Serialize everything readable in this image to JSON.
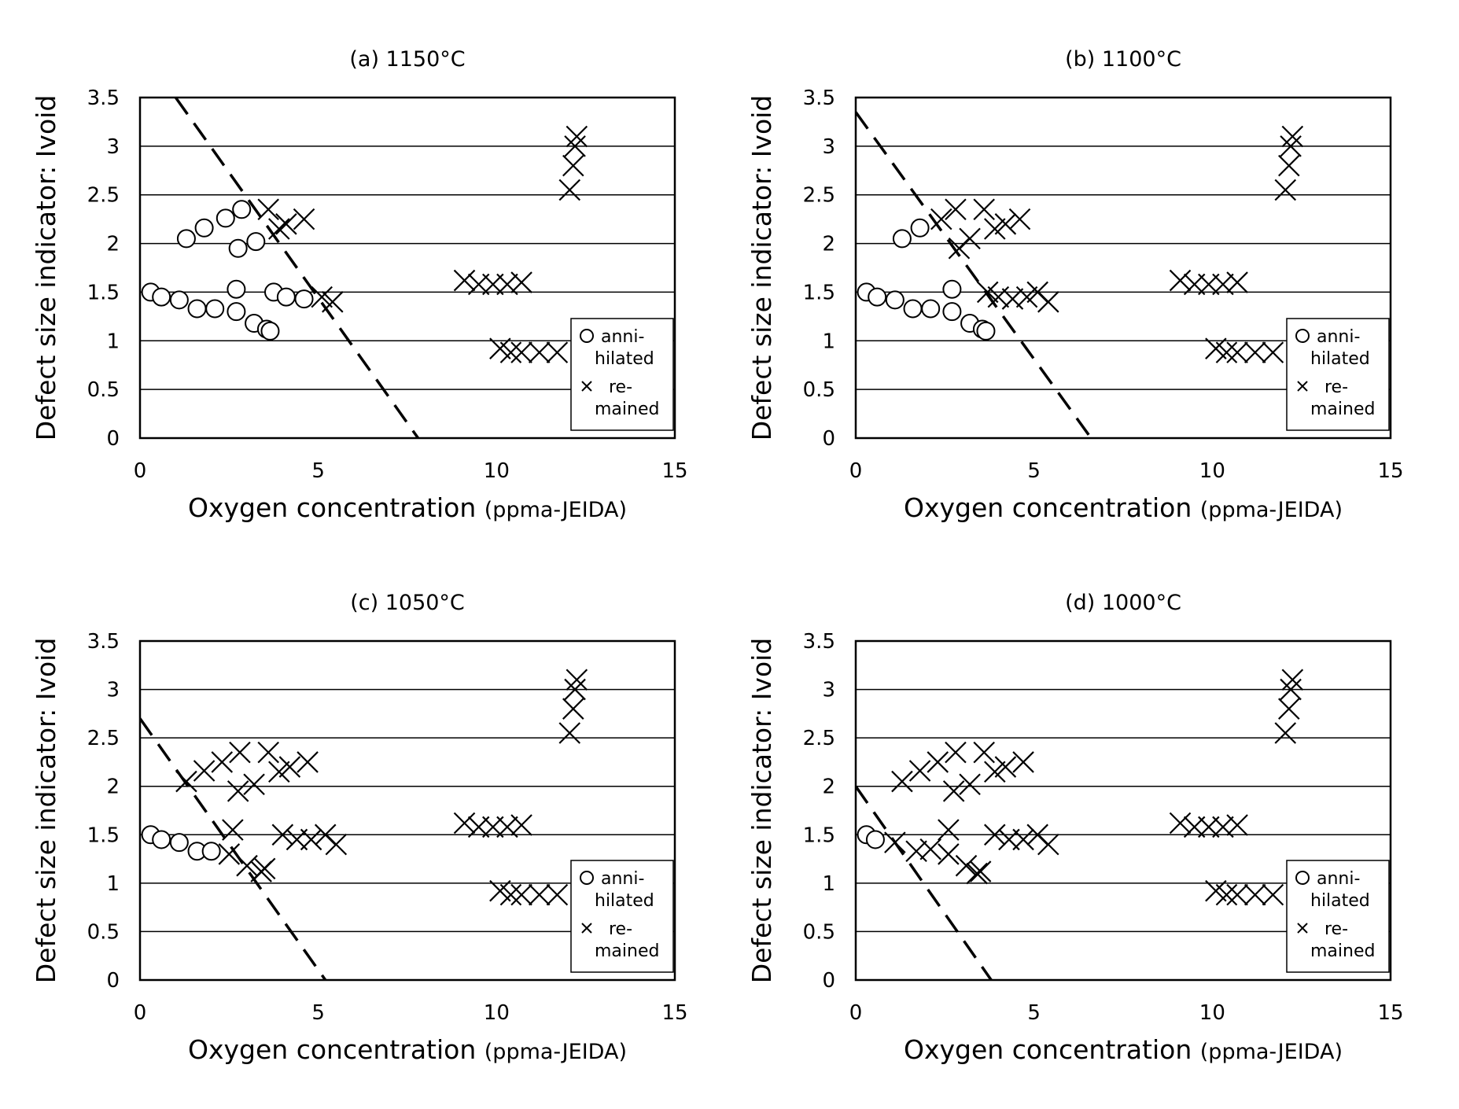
{
  "chart_data": [
    {
      "type": "scatter",
      "title": "(a) 1150°C",
      "xlabel": "Oxygen concentration",
      "xlabel_unit": "(ppma-JEIDA)",
      "ylabel": "Defect size indicator: Ivoid",
      "xlim": [
        0,
        15
      ],
      "ylim": [
        0,
        3.5
      ],
      "x_ticks": [
        "0",
        "5",
        "10",
        "15"
      ],
      "y_ticks": [
        "0",
        "0.5",
        "1",
        "1.5",
        "2",
        "2.5",
        "3",
        "3.5"
      ],
      "grid": "horizontal",
      "legend": {
        "position": "right",
        "annihilated_line1": "anni-",
        "annihilated_line2": "hilated",
        "remained_line1": "re-",
        "remained_line2": "mained"
      },
      "series": [
        {
          "name": "annihilated",
          "marker": "circle",
          "points": [
            [
              0.3,
              1.5
            ],
            [
              0.6,
              1.45
            ],
            [
              1.1,
              1.42
            ],
            [
              1.6,
              1.33
            ],
            [
              2.1,
              1.33
            ],
            [
              2.7,
              1.53
            ],
            [
              2.7,
              1.3
            ],
            [
              3.2,
              1.18
            ],
            [
              3.55,
              1.12
            ],
            [
              3.65,
              1.1
            ],
            [
              3.75,
              1.5
            ],
            [
              4.1,
              1.45
            ],
            [
              4.6,
              1.43
            ],
            [
              1.3,
              2.05
            ],
            [
              1.8,
              2.16
            ],
            [
              2.4,
              2.26
            ],
            [
              2.85,
              2.35
            ],
            [
              2.75,
              1.95
            ],
            [
              3.25,
              2.02
            ]
          ]
        },
        {
          "name": "remained",
          "marker": "x",
          "points": [
            [
              3.6,
              2.35
            ],
            [
              3.9,
              2.15
            ],
            [
              4.1,
              2.2
            ],
            [
              4.6,
              2.25
            ],
            [
              5.1,
              1.45
            ],
            [
              5.4,
              1.4
            ],
            [
              9.1,
              1.62
            ],
            [
              9.5,
              1.58
            ],
            [
              9.9,
              1.58
            ],
            [
              10.3,
              1.58
            ],
            [
              10.7,
              1.6
            ],
            [
              10.1,
              0.92
            ],
            [
              10.4,
              0.88
            ],
            [
              10.7,
              0.88
            ],
            [
              11.2,
              0.88
            ],
            [
              11.7,
              0.88
            ],
            [
              12.05,
              2.55
            ],
            [
              12.15,
              2.8
            ],
            [
              12.2,
              3.0
            ],
            [
              12.25,
              3.1
            ]
          ]
        }
      ],
      "boundary_line": [
        [
          1.0,
          3.5
        ],
        [
          7.8,
          0
        ]
      ]
    },
    {
      "type": "scatter",
      "title": "(b) 1100°C",
      "xlabel": "Oxygen concentration",
      "xlabel_unit": "(ppma-JEIDA)",
      "ylabel": "Defect size indicator: Ivoid",
      "xlim": [
        0,
        15
      ],
      "ylim": [
        0,
        3.5
      ],
      "x_ticks": [
        "0",
        "5",
        "10",
        "15"
      ],
      "y_ticks": [
        "0",
        "0.5",
        "1",
        "1.5",
        "2",
        "2.5",
        "3",
        "3.5"
      ],
      "grid": "horizontal",
      "legend": {
        "position": "right",
        "annihilated_line1": "anni-",
        "annihilated_line2": "hilated",
        "remained_line1": "re-",
        "remained_line2": "mained"
      },
      "series": [
        {
          "name": "annihilated",
          "marker": "circle",
          "points": [
            [
              0.3,
              1.5
            ],
            [
              0.6,
              1.45
            ],
            [
              1.1,
              1.42
            ],
            [
              1.6,
              1.33
            ],
            [
              2.1,
              1.33
            ],
            [
              2.7,
              1.53
            ],
            [
              2.7,
              1.3
            ],
            [
              3.2,
              1.18
            ],
            [
              3.55,
              1.12
            ],
            [
              3.65,
              1.1
            ],
            [
              1.3,
              2.05
            ],
            [
              1.8,
              2.16
            ]
          ]
        },
        {
          "name": "remained",
          "marker": "x",
          "points": [
            [
              2.4,
              2.25
            ],
            [
              2.8,
              2.35
            ],
            [
              2.9,
              1.95
            ],
            [
              3.2,
              2.05
            ],
            [
              3.6,
              2.35
            ],
            [
              3.9,
              2.15
            ],
            [
              4.2,
              2.2
            ],
            [
              4.6,
              2.25
            ],
            [
              3.7,
              1.5
            ],
            [
              4.0,
              1.45
            ],
            [
              4.4,
              1.43
            ],
            [
              4.8,
              1.45
            ],
            [
              5.1,
              1.5
            ],
            [
              5.4,
              1.4
            ],
            [
              9.1,
              1.62
            ],
            [
              9.5,
              1.58
            ],
            [
              9.9,
              1.58
            ],
            [
              10.3,
              1.58
            ],
            [
              10.7,
              1.6
            ],
            [
              10.1,
              0.92
            ],
            [
              10.4,
              0.88
            ],
            [
              10.7,
              0.88
            ],
            [
              11.2,
              0.88
            ],
            [
              11.7,
              0.88
            ],
            [
              12.05,
              2.55
            ],
            [
              12.15,
              2.8
            ],
            [
              12.2,
              3.0
            ],
            [
              12.25,
              3.1
            ]
          ]
        }
      ],
      "boundary_line": [
        [
          0,
          3.35
        ],
        [
          6.6,
          0
        ]
      ]
    },
    {
      "type": "scatter",
      "title": "(c) 1050°C",
      "xlabel": "Oxygen concentration",
      "xlabel_unit": "(ppma-JEIDA)",
      "ylabel": "Defect size indicator: Ivoid",
      "xlim": [
        0,
        15
      ],
      "ylim": [
        0,
        3.5
      ],
      "x_ticks": [
        "0",
        "5",
        "10",
        "15"
      ],
      "y_ticks": [
        "0",
        "0.5",
        "1",
        "1.5",
        "2",
        "2.5",
        "3",
        "3.5"
      ],
      "grid": "horizontal",
      "legend": {
        "position": "right",
        "annihilated_line1": "anni-",
        "annihilated_line2": "hilated",
        "remained_line1": "re-",
        "remained_line2": "mained"
      },
      "series": [
        {
          "name": "annihilated",
          "marker": "circle",
          "points": [
            [
              0.3,
              1.5
            ],
            [
              0.6,
              1.45
            ],
            [
              1.1,
              1.42
            ],
            [
              1.6,
              1.33
            ],
            [
              2.0,
              1.33
            ]
          ]
        },
        {
          "name": "remained",
          "marker": "x",
          "points": [
            [
              1.3,
              2.05
            ],
            [
              1.8,
              2.16
            ],
            [
              2.3,
              2.25
            ],
            [
              2.8,
              2.35
            ],
            [
              2.75,
              1.95
            ],
            [
              3.2,
              2.02
            ],
            [
              3.6,
              2.35
            ],
            [
              3.9,
              2.15
            ],
            [
              4.2,
              2.2
            ],
            [
              4.7,
              2.25
            ],
            [
              2.6,
              1.55
            ],
            [
              2.5,
              1.3
            ],
            [
              3.0,
              1.18
            ],
            [
              3.4,
              1.12
            ],
            [
              3.5,
              1.15
            ],
            [
              4.0,
              1.5
            ],
            [
              4.4,
              1.45
            ],
            [
              4.8,
              1.45
            ],
            [
              5.2,
              1.5
            ],
            [
              5.5,
              1.4
            ],
            [
              9.1,
              1.62
            ],
            [
              9.5,
              1.58
            ],
            [
              9.9,
              1.58
            ],
            [
              10.3,
              1.58
            ],
            [
              10.7,
              1.6
            ],
            [
              10.1,
              0.92
            ],
            [
              10.4,
              0.88
            ],
            [
              10.7,
              0.88
            ],
            [
              11.2,
              0.88
            ],
            [
              11.7,
              0.88
            ],
            [
              12.05,
              2.55
            ],
            [
              12.15,
              2.8
            ],
            [
              12.2,
              3.0
            ],
            [
              12.25,
              3.1
            ]
          ]
        }
      ],
      "boundary_line": [
        [
          0,
          2.7
        ],
        [
          5.2,
          0
        ]
      ]
    },
    {
      "type": "scatter",
      "title": "(d) 1000°C",
      "xlabel": "Oxygen concentration",
      "xlabel_unit": "(ppma-JEIDA)",
      "ylabel": "Defect size indicator: Ivoid",
      "xlim": [
        0,
        15
      ],
      "ylim": [
        0,
        3.5
      ],
      "x_ticks": [
        "0",
        "5",
        "10",
        "15"
      ],
      "y_ticks": [
        "0",
        "0.5",
        "1",
        "1.5",
        "2",
        "2.5",
        "3",
        "3.5"
      ],
      "grid": "horizontal",
      "legend": {
        "position": "right",
        "annihilated_line1": "anni-",
        "annihilated_line2": "hilated",
        "remained_line1": "re-",
        "remained_line2": "mained"
      },
      "series": [
        {
          "name": "annihilated",
          "marker": "circle",
          "points": [
            [
              0.3,
              1.5
            ],
            [
              0.55,
              1.45
            ]
          ]
        },
        {
          "name": "remained",
          "marker": "x",
          "points": [
            [
              1.1,
              1.42
            ],
            [
              1.3,
              2.05
            ],
            [
              1.8,
              2.16
            ],
            [
              2.3,
              2.25
            ],
            [
              2.8,
              2.35
            ],
            [
              2.75,
              1.95
            ],
            [
              3.2,
              2.02
            ],
            [
              3.6,
              2.35
            ],
            [
              3.9,
              2.15
            ],
            [
              4.2,
              2.2
            ],
            [
              4.7,
              2.25
            ],
            [
              1.7,
              1.33
            ],
            [
              2.1,
              1.35
            ],
            [
              2.6,
              1.55
            ],
            [
              2.6,
              1.3
            ],
            [
              3.1,
              1.18
            ],
            [
              3.4,
              1.1
            ],
            [
              3.5,
              1.12
            ],
            [
              3.9,
              1.5
            ],
            [
              4.3,
              1.45
            ],
            [
              4.7,
              1.45
            ],
            [
              5.1,
              1.5
            ],
            [
              5.4,
              1.4
            ],
            [
              9.1,
              1.62
            ],
            [
              9.5,
              1.58
            ],
            [
              9.9,
              1.58
            ],
            [
              10.3,
              1.58
            ],
            [
              10.7,
              1.6
            ],
            [
              10.1,
              0.92
            ],
            [
              10.4,
              0.88
            ],
            [
              10.7,
              0.88
            ],
            [
              11.2,
              0.88
            ],
            [
              11.7,
              0.88
            ],
            [
              12.05,
              2.55
            ],
            [
              12.15,
              2.8
            ],
            [
              12.2,
              3.0
            ],
            [
              12.25,
              3.1
            ]
          ]
        }
      ],
      "boundary_line": [
        [
          0,
          2.0
        ],
        [
          3.8,
          0
        ]
      ]
    }
  ]
}
